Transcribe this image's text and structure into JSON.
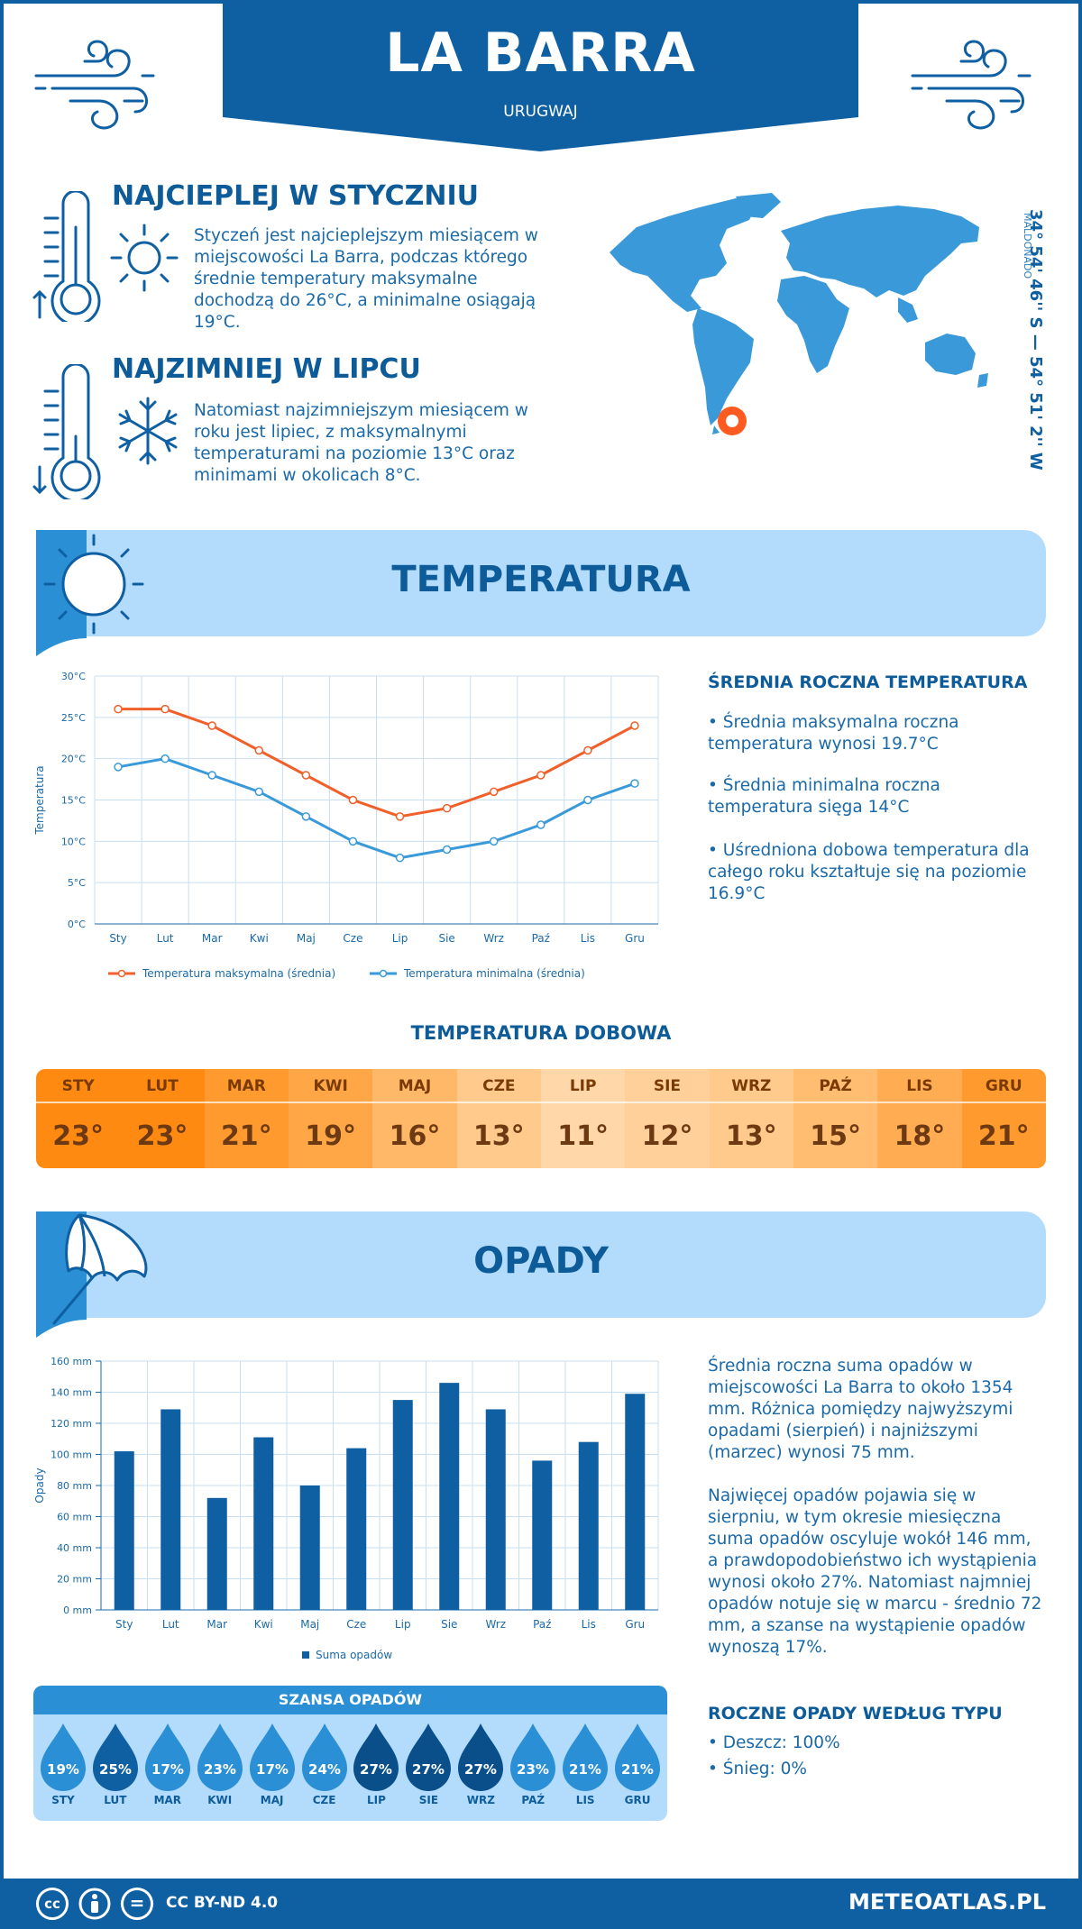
{
  "header": {
    "title": "LA BARRA",
    "country": "URUGWAJ"
  },
  "warmest": {
    "heading": "NAJCIEPLEJ W STYCZNIU",
    "text": "Styczeń jest najcieplejszym miesiącem w miejscowości La Barra, podczas którego średnie temperatury maksymalne dochodzą do 26°C, a minimalne osiągają 19°C."
  },
  "coldest": {
    "heading": "NAJZIMNIEJ W LIPCU",
    "text": "Natomiast najzimniejszym miesiącem w roku jest lipiec, z maksymalnymi temperaturami na poziomie 13°C oraz minimami w okolicach 8°C."
  },
  "location": {
    "coords": "34° 54' 46'' S — 54° 51' 2'' W",
    "region": "MALDONADO"
  },
  "temperature": {
    "section_title": "TEMPERATURA",
    "side_heading": "ŚREDNIA ROCZNA TEMPERATURA",
    "side_points": [
      "• Średnia maksymalna roczna temperatura wynosi 19.7°C",
      "• Średnia minimalna roczna temperatura sięga 14°C",
      "• Uśredniona dobowa temperatura dla całego roku kształtuje się na poziomie 16.9°C"
    ],
    "daily_heading": "TEMPERATURA DOBOWA",
    "daily": [
      {
        "month": "STY",
        "value": "23°",
        "color": "#ff8a12"
      },
      {
        "month": "LUT",
        "value": "23°",
        "color": "#ff8a12"
      },
      {
        "month": "MAR",
        "value": "21°",
        "color": "#ff9a2e"
      },
      {
        "month": "KWI",
        "value": "19°",
        "color": "#ffa646"
      },
      {
        "month": "MAJ",
        "value": "16°",
        "color": "#ffb867"
      },
      {
        "month": "CZE",
        "value": "13°",
        "color": "#ffca8c"
      },
      {
        "month": "LIP",
        "value": "11°",
        "color": "#ffd7a8"
      },
      {
        "month": "SIE",
        "value": "12°",
        "color": "#ffd09a"
      },
      {
        "month": "WRZ",
        "value": "13°",
        "color": "#ffca8c"
      },
      {
        "month": "PAŹ",
        "value": "15°",
        "color": "#ffbd72"
      },
      {
        "month": "LIS",
        "value": "18°",
        "color": "#ffac52"
      },
      {
        "month": "GRU",
        "value": "21°",
        "color": "#ff9a2e"
      }
    ]
  },
  "chart_data": [
    {
      "type": "line",
      "categories": [
        "Sty",
        "Lut",
        "Mar",
        "Kwi",
        "Maj",
        "Cze",
        "Lip",
        "Sie",
        "Wrz",
        "Paź",
        "Lis",
        "Gru"
      ],
      "series": [
        {
          "name": "Temperatura maksymalna (średnia)",
          "values": [
            26,
            26,
            24,
            21,
            18,
            15,
            13,
            14,
            16,
            18,
            21,
            24
          ],
          "color": "#f0602a"
        },
        {
          "name": "Temperatura minimalna (średnia)",
          "values": [
            19,
            20,
            18,
            16,
            13,
            10,
            8,
            9,
            10,
            12,
            15,
            17
          ],
          "color": "#3a9ad9"
        }
      ],
      "ylabel": "Temperatura",
      "ylim": [
        0,
        30
      ],
      "yticks": [
        "0°C",
        "5°C",
        "10°C",
        "15°C",
        "20°C",
        "25°C",
        "30°C"
      ],
      "grid": true,
      "legend": "bottom"
    },
    {
      "type": "bar",
      "categories": [
        "Sty",
        "Lut",
        "Mar",
        "Kwi",
        "Maj",
        "Cze",
        "Lip",
        "Sie",
        "Wrz",
        "Paź",
        "Lis",
        "Gru"
      ],
      "series": [
        {
          "name": "Suma opadów",
          "values": [
            102,
            129,
            72,
            111,
            80,
            104,
            135,
            146,
            129,
            96,
            108,
            139
          ],
          "color": "#0f5fa3"
        }
      ],
      "ylabel": "Opady",
      "ylim": [
        0,
        160
      ],
      "yticks": [
        "0 mm",
        "20 mm",
        "40 mm",
        "60 mm",
        "80 mm",
        "100 mm",
        "120 mm",
        "140 mm",
        "160 mm"
      ],
      "grid": true,
      "legend": "bottom"
    }
  ],
  "precip": {
    "section_title": "OPADY",
    "side_text1": "Średnia roczna suma opadów w miejscowości La Barra to około 1354 mm. Różnica pomiędzy najwyższymi opadami (sierpień) i najniższymi (marzec) wynosi 75 mm.",
    "side_text2": "Najwięcej opadów pojawia się w sierpniu, w tym okresie miesięczna suma opadów oscyluje wokół 146 mm, a prawdopodobieństwo ich wystąpienia wynosi około 27%. Natomiast najmniej opadów notuje się w marcu - średnio 72 mm, a szanse na wystąpienie opadów wynoszą 17%.",
    "chance_heading": "SZANSA OPADÓW",
    "chance": [
      {
        "month": "STY",
        "value": "19%",
        "color": "#2b8fd6"
      },
      {
        "month": "LUT",
        "value": "25%",
        "color": "#0f5fa3"
      },
      {
        "month": "MAR",
        "value": "17%",
        "color": "#2b8fd6"
      },
      {
        "month": "KWI",
        "value": "23%",
        "color": "#2b8fd6"
      },
      {
        "month": "MAJ",
        "value": "17%",
        "color": "#2b8fd6"
      },
      {
        "month": "CZE",
        "value": "24%",
        "color": "#2b8fd6"
      },
      {
        "month": "LIP",
        "value": "27%",
        "color": "#0a4f8a"
      },
      {
        "month": "SIE",
        "value": "27%",
        "color": "#0a4f8a"
      },
      {
        "month": "WRZ",
        "value": "27%",
        "color": "#0a4f8a"
      },
      {
        "month": "PAŹ",
        "value": "23%",
        "color": "#2b8fd6"
      },
      {
        "month": "LIS",
        "value": "21%",
        "color": "#2b8fd6"
      },
      {
        "month": "GRU",
        "value": "21%",
        "color": "#2b8fd6"
      }
    ],
    "type_heading": "ROCZNE OPADY WEDŁUG TYPU",
    "types": [
      "• Deszcz: 100%",
      "• Śnieg: 0%"
    ]
  },
  "footer": {
    "license": "CC BY-ND 4.0",
    "site": "METEOATLAS.PL",
    "cc": "cc",
    "eq": "="
  }
}
